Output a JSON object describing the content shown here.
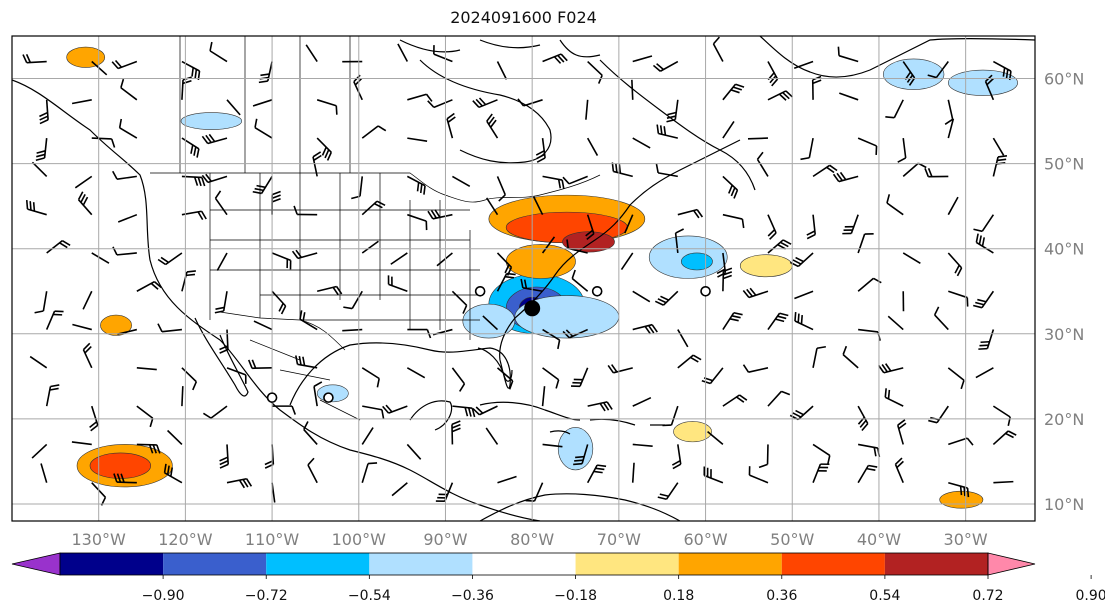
{
  "title": "2024091600 F024",
  "map": {
    "lon_range": [
      -140,
      -22
    ],
    "lat_range": [
      8,
      65
    ],
    "lon_ticks": [
      {
        "value": -130,
        "label": "130°W"
      },
      {
        "value": -120,
        "label": "120°W"
      },
      {
        "value": -110,
        "label": "110°W"
      },
      {
        "value": -100,
        "label": "100°W"
      },
      {
        "value": -90,
        "label": "90°W"
      },
      {
        "value": -80,
        "label": "80°W"
      },
      {
        "value": -70,
        "label": "70°W"
      },
      {
        "value": -60,
        "label": "60°W"
      },
      {
        "value": -50,
        "label": "50°W"
      },
      {
        "value": -40,
        "label": "40°W"
      },
      {
        "value": -30,
        "label": "30°W"
      }
    ],
    "lat_ticks": [
      {
        "value": 60,
        "label": "60°N"
      },
      {
        "value": 50,
        "label": "50°N"
      },
      {
        "value": 40,
        "label": "40°N"
      },
      {
        "value": 30,
        "label": "30°N"
      },
      {
        "value": 20,
        "label": "20°N"
      },
      {
        "value": 10,
        "label": "10°N"
      }
    ],
    "grid": true,
    "field_blobs": [
      {
        "lon": -79.5,
        "lat": 33.5,
        "rx": 5.5,
        "ry": 3.5,
        "level": -0.54
      },
      {
        "lon": -79.5,
        "lat": 33.0,
        "rx": 3.5,
        "ry": 2.5,
        "level": -0.72
      },
      {
        "lon": -80.0,
        "lat": 33.0,
        "rx": 1.5,
        "ry": 1.3,
        "level": -0.9
      },
      {
        "lon": -76.0,
        "lat": 32.0,
        "rx": 6.0,
        "ry": 2.5,
        "level": -0.36
      },
      {
        "lon": -85.0,
        "lat": 31.5,
        "rx": 3.0,
        "ry": 2.0,
        "level": -0.36
      },
      {
        "lon": -76.0,
        "lat": 43.5,
        "rx": 9.0,
        "ry": 2.8,
        "level": 0.36
      },
      {
        "lon": -76.0,
        "lat": 42.5,
        "rx": 7.0,
        "ry": 1.8,
        "level": 0.54
      },
      {
        "lon": -73.5,
        "lat": 40.8,
        "rx": 3.0,
        "ry": 1.2,
        "level": 0.72
      },
      {
        "lon": -79.0,
        "lat": 38.5,
        "rx": 4.0,
        "ry": 2.0,
        "level": 0.36
      },
      {
        "lon": -62.0,
        "lat": 39.0,
        "rx": 4.5,
        "ry": 2.5,
        "level": -0.36
      },
      {
        "lon": -61.0,
        "lat": 38.5,
        "rx": 1.8,
        "ry": 1.0,
        "level": -0.54
      },
      {
        "lon": -127.0,
        "lat": 14.5,
        "rx": 5.5,
        "ry": 2.5,
        "level": 0.36
      },
      {
        "lon": -127.5,
        "lat": 14.5,
        "rx": 3.5,
        "ry": 1.5,
        "level": 0.54
      },
      {
        "lon": -75.0,
        "lat": 16.5,
        "rx": 2.0,
        "ry": 2.5,
        "level": -0.36
      },
      {
        "lon": -36.0,
        "lat": 60.5,
        "rx": 3.5,
        "ry": 1.8,
        "level": -0.36
      },
      {
        "lon": -28.0,
        "lat": 59.5,
        "rx": 4.0,
        "ry": 1.5,
        "level": -0.36
      },
      {
        "lon": -128.0,
        "lat": 31.0,
        "rx": 1.8,
        "ry": 1.2,
        "level": 0.36
      },
      {
        "lon": -131.5,
        "lat": 62.5,
        "rx": 2.2,
        "ry": 1.2,
        "level": 0.36
      },
      {
        "lon": -61.5,
        "lat": 18.5,
        "rx": 2.2,
        "ry": 1.2,
        "level": 0.18
      },
      {
        "lon": -53.0,
        "lat": 38.0,
        "rx": 3.0,
        "ry": 1.3,
        "level": 0.18
      },
      {
        "lon": -30.5,
        "lat": 10.5,
        "rx": 2.5,
        "ry": 1.0,
        "level": 0.36
      },
      {
        "lon": -117.0,
        "lat": 55.0,
        "rx": 3.5,
        "ry": 1.0,
        "level": -0.36
      },
      {
        "lon": -103.0,
        "lat": 23.0,
        "rx": 1.8,
        "ry": 1.0,
        "level": -0.36
      }
    ],
    "markers": [
      {
        "lon": -80.0,
        "lat": 33.0,
        "type": "filled"
      },
      {
        "lon": -86.0,
        "lat": 35.0,
        "type": "open"
      },
      {
        "lon": -72.5,
        "lat": 35.0,
        "type": "open"
      },
      {
        "lon": -60.0,
        "lat": 35.0,
        "type": "open"
      },
      {
        "lon": -110.0,
        "lat": 22.5,
        "type": "open"
      },
      {
        "lon": -103.5,
        "lat": 22.5,
        "type": "open"
      }
    ]
  },
  "colorbar": {
    "colors": [
      "#9932cc",
      "#00008b",
      "#3a5fcd",
      "#00bfff",
      "#b0e0ff",
      "#ffffff",
      "#ffe680",
      "#ffa500",
      "#ff4500",
      "#b22222",
      "#ff88aa"
    ],
    "tick_labels": [
      "−0.90",
      "−0.72",
      "−0.54",
      "−0.36",
      "−0.18",
      "0.18",
      "0.36",
      "0.54",
      "0.72",
      "0.90"
    ]
  }
}
